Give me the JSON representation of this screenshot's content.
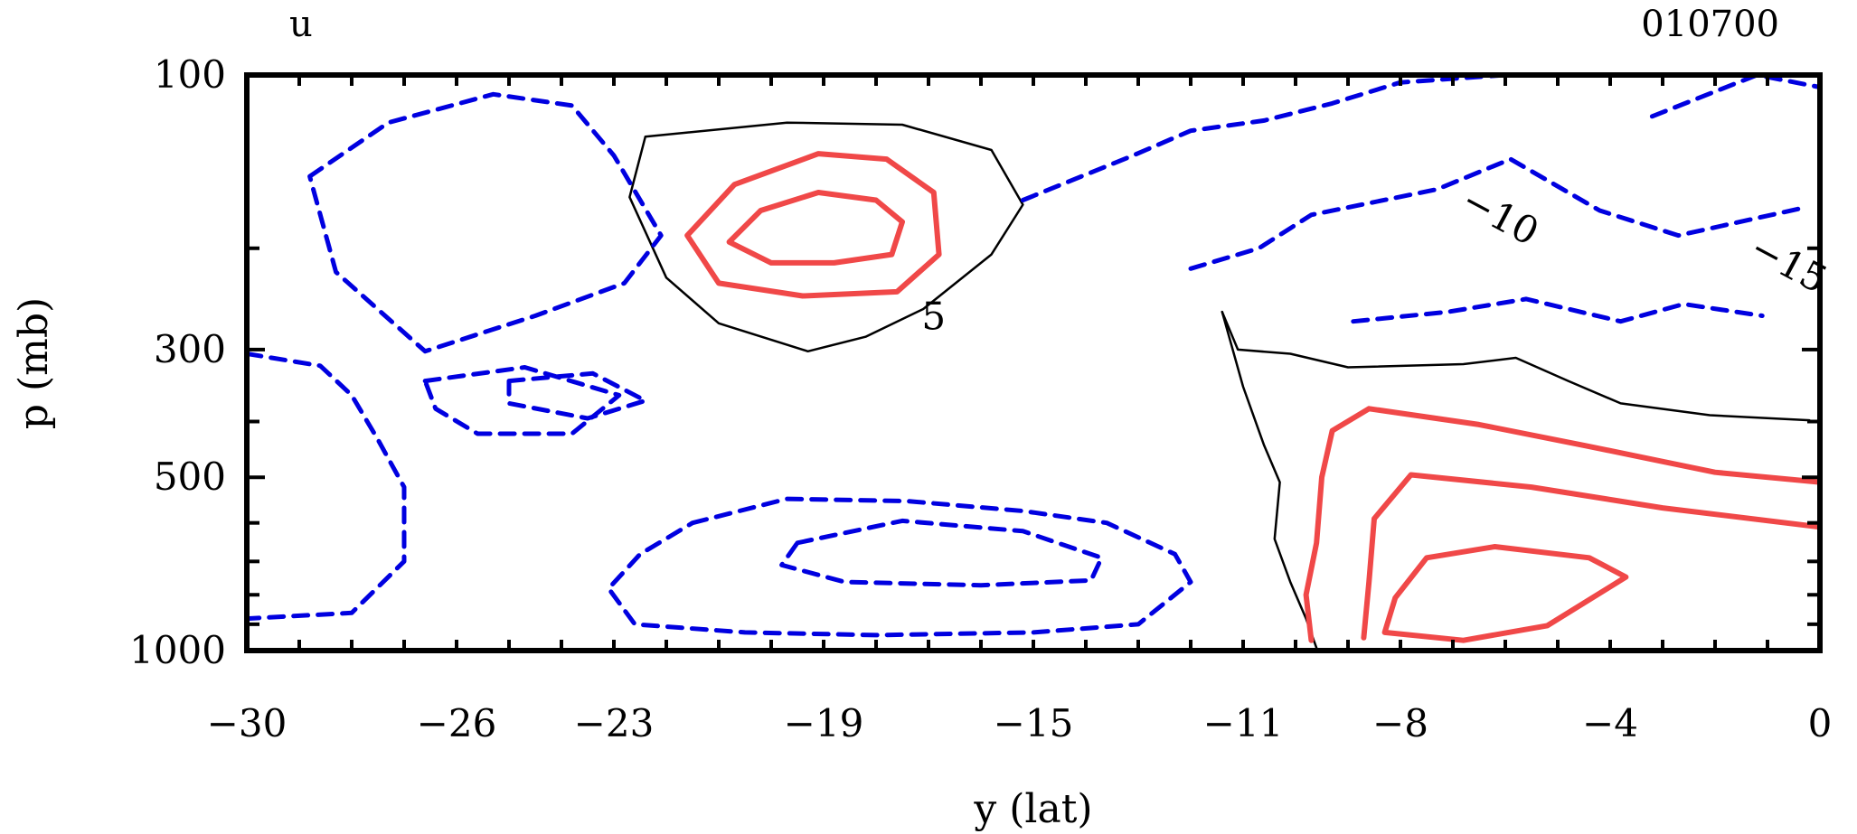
{
  "chart_data": {
    "type": "contour",
    "variable": "u",
    "time_label": "010700",
    "xlabel": "y (lat)",
    "ylabel": "p (mb)",
    "xlim": [
      -30,
      0
    ],
    "ylim": [
      1000,
      100
    ],
    "yscale": "log",
    "x_ticks": [
      "-30",
      "-26",
      "-23",
      "-19",
      "-15",
      "-11",
      "-8",
      "-4",
      "0"
    ],
    "y_ticks": [
      "100",
      "300",
      "500",
      "1000"
    ],
    "contour_labels": [
      "5",
      "-10",
      "-15"
    ],
    "colors": {
      "positive": "#f04848",
      "zero": "#000000",
      "negative": "#0000e0"
    },
    "line_styles": {
      "positive": "solid",
      "zero": "thin solid",
      "negative": "dashed"
    },
    "contours": [
      {
        "level": 0,
        "points": [
          [
            -22.4,
            128
          ],
          [
            -19.7,
            121
          ],
          [
            -17.5,
            122
          ],
          [
            -15.8,
            135
          ],
          [
            -15.2,
            168
          ],
          [
            -15.8,
            205
          ],
          [
            -17.1,
            255
          ],
          [
            -18.2,
            285
          ],
          [
            -19.3,
            302
          ],
          [
            -21,
            270
          ],
          [
            -22,
            225
          ],
          [
            -22.7,
            163
          ],
          [
            -22.4,
            128
          ]
        ]
      },
      {
        "level": 5,
        "points": [
          [
            -20.7,
            155
          ],
          [
            -19.1,
            137
          ],
          [
            -17.8,
            140
          ],
          [
            -16.9,
            160
          ],
          [
            -16.8,
            205
          ],
          [
            -17.6,
            238
          ],
          [
            -19.4,
            242
          ],
          [
            -21,
            230
          ],
          [
            -21.6,
            190
          ],
          [
            -20.7,
            155
          ]
        ]
      },
      {
        "level": 10,
        "points": [
          [
            -20.2,
            172
          ],
          [
            -19.1,
            160
          ],
          [
            -18,
            165
          ],
          [
            -17.5,
            180
          ],
          [
            -17.7,
            205
          ],
          [
            -18.8,
            212
          ],
          [
            -20,
            212
          ],
          [
            -20.8,
            195
          ],
          [
            -20.2,
            172
          ]
        ]
      },
      {
        "level": 0,
        "points": [
          [
            -11.4,
            258
          ],
          [
            -11.1,
            300
          ],
          [
            -10.1,
            305
          ],
          [
            -9,
            322
          ],
          [
            -6.8,
            318
          ],
          [
            -5.8,
            310
          ],
          [
            -4.8,
            340
          ],
          [
            -3.8,
            372
          ],
          [
            -2.1,
            390
          ],
          [
            -0.2,
            398
          ]
        ]
      },
      {
        "level": 0,
        "points": [
          [
            -11.4,
            258
          ],
          [
            -11,
            348
          ],
          [
            -10.6,
            440
          ],
          [
            -10.3,
            510
          ],
          [
            -10.4,
            640
          ],
          [
            -10.1,
            760
          ],
          [
            -9.8,
            880
          ],
          [
            -9.6,
            990
          ]
        ]
      },
      {
        "level": 5,
        "points": [
          [
            -9.7,
            960
          ],
          [
            -9.8,
            800
          ],
          [
            -9.6,
            650
          ],
          [
            -9.5,
            500
          ],
          [
            -9.3,
            415
          ],
          [
            -8.6,
            380
          ],
          [
            -6.5,
            405
          ],
          [
            -4.5,
            440
          ],
          [
            -2,
            490
          ],
          [
            0,
            510
          ]
        ]
      },
      {
        "level": 10,
        "points": [
          [
            -8.7,
            950
          ],
          [
            -8.6,
            760
          ],
          [
            -8.5,
            590
          ],
          [
            -7.8,
            495
          ],
          [
            -5.5,
            520
          ],
          [
            -3,
            565
          ],
          [
            0,
            610
          ]
        ]
      },
      {
        "level": 15,
        "points": [
          [
            -8.3,
            930
          ],
          [
            -8.1,
            810
          ],
          [
            -7.5,
            690
          ],
          [
            -6.2,
            660
          ],
          [
            -4.4,
            690
          ],
          [
            -3.7,
            745
          ],
          [
            -5.2,
            905
          ],
          [
            -6.8,
            960
          ],
          [
            -8.3,
            930
          ]
        ]
      },
      {
        "level": -5,
        "points": [
          [
            -28.8,
            150
          ],
          [
            -27.3,
            121
          ],
          [
            -25.3,
            108
          ],
          [
            -23.8,
            113
          ],
          [
            -23,
            138
          ],
          [
            -22.1,
            190
          ],
          [
            -22.8,
            230
          ],
          [
            -24.5,
            262
          ],
          [
            -26.6,
            302
          ],
          [
            -28.3,
            220
          ],
          [
            -28.8,
            150
          ]
        ]
      },
      {
        "level": -5,
        "points": [
          [
            -30,
            305
          ],
          [
            -28.6,
            320
          ],
          [
            -28,
            360
          ],
          [
            -27.5,
            430
          ],
          [
            -27,
            520
          ],
          [
            -27,
            700
          ],
          [
            -28,
            860
          ],
          [
            -30,
            880
          ]
        ]
      },
      {
        "level": -10,
        "points": [
          [
            -26.6,
            340
          ],
          [
            -24.7,
            322
          ],
          [
            -22.9,
            360
          ],
          [
            -23.8,
            420
          ],
          [
            -25.6,
            420
          ],
          [
            -26.4,
            380
          ],
          [
            -26.6,
            340
          ]
        ]
      },
      {
        "level": -15,
        "points": [
          [
            -25,
            340
          ],
          [
            -23.4,
            330
          ],
          [
            -22.4,
            368
          ],
          [
            -23.5,
            395
          ],
          [
            -25,
            372
          ],
          [
            -25,
            340
          ]
        ]
      },
      {
        "level": -5,
        "points": [
          [
            -21.5,
            600
          ],
          [
            -19.7,
            545
          ],
          [
            -17.4,
            550
          ],
          [
            -15.2,
            572
          ],
          [
            -13.6,
            600
          ],
          [
            -12.3,
            680
          ],
          [
            -12,
            760
          ],
          [
            -13,
            900
          ],
          [
            -15,
            930
          ],
          [
            -18,
            940
          ],
          [
            -20.5,
            930
          ],
          [
            -22.6,
            900
          ],
          [
            -23.1,
            780
          ],
          [
            -22.5,
            680
          ],
          [
            -21.5,
            600
          ]
        ]
      },
      {
        "level": -10,
        "points": [
          [
            -19.5,
            650
          ],
          [
            -17.5,
            595
          ],
          [
            -15.2,
            620
          ],
          [
            -13.7,
            690
          ],
          [
            -13.9,
            755
          ],
          [
            -16,
            770
          ],
          [
            -18.6,
            760
          ],
          [
            -19.8,
            710
          ],
          [
            -19.5,
            650
          ]
        ]
      },
      {
        "level": -5,
        "points": [
          [
            -15.2,
            165
          ],
          [
            -13.1,
            138
          ],
          [
            -12,
            125
          ],
          [
            -10.6,
            120
          ],
          [
            -9.3,
            112
          ],
          [
            -8,
            103
          ],
          [
            -6,
            100
          ]
        ]
      },
      {
        "level": -10,
        "points": [
          [
            -12,
            217
          ],
          [
            -10.7,
            200
          ],
          [
            -9.7,
            175
          ],
          [
            -7.3,
            158
          ],
          [
            -5.9,
            140
          ],
          [
            -4.2,
            172
          ],
          [
            -2.7,
            190
          ],
          [
            -0.3,
            170
          ]
        ]
      },
      {
        "level": -15,
        "points": [
          [
            -8.9,
            268
          ],
          [
            -7.1,
            258
          ],
          [
            -5.6,
            245
          ],
          [
            -3.8,
            268
          ],
          [
            -2.6,
            250
          ],
          [
            -1.1,
            262
          ]
        ]
      },
      {
        "level": -20,
        "points": [
          [
            -3.2,
            118
          ],
          [
            -1.2,
            100
          ],
          [
            0,
            105
          ]
        ]
      }
    ]
  }
}
